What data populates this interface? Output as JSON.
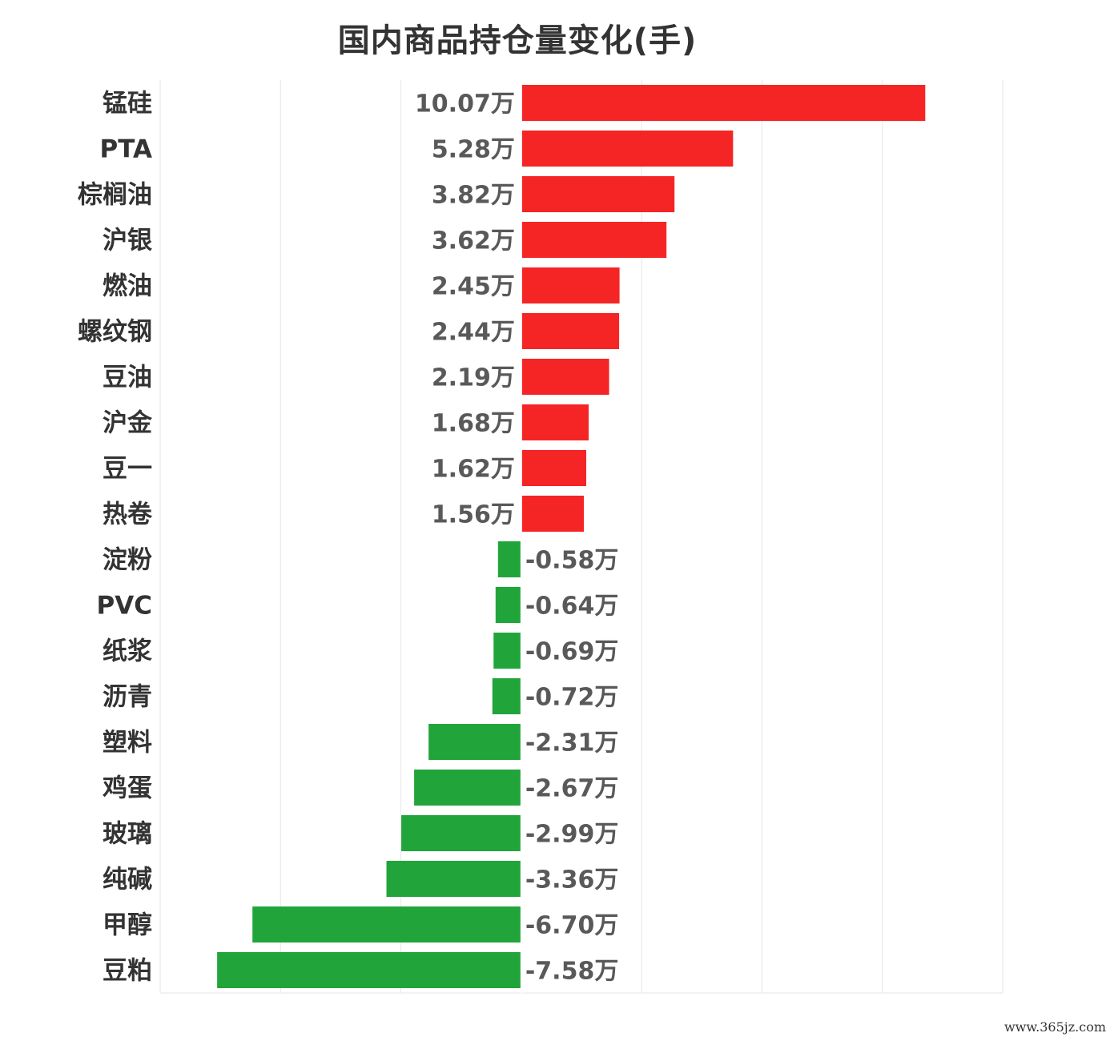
{
  "chart_data": {
    "type": "bar",
    "orientation": "horizontal",
    "title": "国内商品持仓量变化(手)",
    "unit_suffix": "万",
    "categories": [
      "锰硅",
      "PTA",
      "棕榈油",
      "沪银",
      "燃油",
      "螺纹钢",
      "豆油",
      "沪金",
      "豆一",
      "热卷",
      "淀粉",
      "PVC",
      "纸浆",
      "沥青",
      "塑料",
      "鸡蛋",
      "玻璃",
      "纯碱",
      "甲醇",
      "豆粕"
    ],
    "values": [
      10.07,
      5.28,
      3.82,
      3.62,
      2.45,
      2.44,
      2.19,
      1.68,
      1.62,
      1.56,
      -0.58,
      -0.64,
      -0.69,
      -0.72,
      -2.31,
      -2.67,
      -2.99,
      -3.36,
      -6.7,
      -7.58
    ],
    "value_labels": [
      "10.07万",
      "5.28万",
      "3.82万",
      "3.62万",
      "2.45万",
      "2.44万",
      "2.19万",
      "1.68万",
      "1.62万",
      "1.56万",
      "-0.58万",
      "-0.64万",
      "-0.69万",
      "-0.72万",
      "-2.31万",
      "-2.67万",
      "-2.99万",
      "-3.36万",
      "-6.70万",
      "-7.58万"
    ],
    "xlim": [
      -9,
      12
    ],
    "grid": true,
    "legend": "none",
    "colors": {
      "positive": "#f52525",
      "negative": "#21a53a",
      "gridline": "#e6e6e6",
      "zero_line": "#ffffff"
    }
  },
  "watermark": "www.365jz.com"
}
